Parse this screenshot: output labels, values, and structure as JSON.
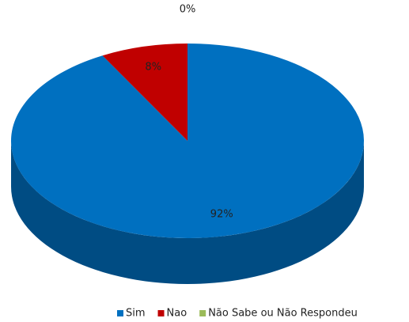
{
  "chart_data": {
    "type": "pie",
    "categories": [
      "Sim",
      "Nao",
      "Não Sabe ou Não Respondeu"
    ],
    "values": [
      92,
      8,
      0
    ],
    "value_labels": [
      "92%",
      "8%",
      "0%"
    ],
    "colors": [
      "#0070c0",
      "#c00000",
      "#9bbb59"
    ],
    "legend": "bottom"
  }
}
